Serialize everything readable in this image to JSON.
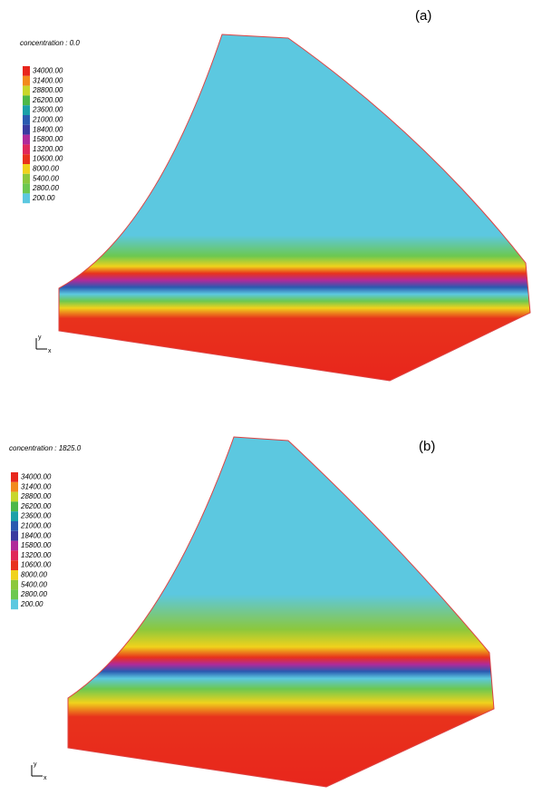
{
  "panels": [
    {
      "label": "(a)",
      "title": "concentration : 0.0",
      "legend": [
        "34000.00",
        "31400.00",
        "28800.00",
        "26200.00",
        "23600.00",
        "21000.00",
        "18400.00",
        "15800.00",
        "13200.00",
        "10600.00",
        "8000.00",
        "5400.00",
        "2800.00",
        "200.00"
      ]
    },
    {
      "label": "(b)",
      "title": "concentration : 1825.0",
      "legend": [
        "34000.00",
        "31400.00",
        "28800.00",
        "26200.00",
        "23600.00",
        "21000.00",
        "18400.00",
        "15800.00",
        "13200.00",
        "10600.00",
        "8000.00",
        "5400.00",
        "2800.00",
        "200.00"
      ]
    }
  ],
  "legend_colors": [
    "#e8261c",
    "#f28a1c",
    "#c8d62a",
    "#4cb848",
    "#1aa0a8",
    "#2a5ab0",
    "#3a3aa0",
    "#b02a9a",
    "#e0285a",
    "#e8321c",
    "#f0d21c",
    "#8cc83c",
    "#6cc850",
    "#5cc8e0"
  ],
  "axis_labels": [
    "y",
    "x"
  ]
}
